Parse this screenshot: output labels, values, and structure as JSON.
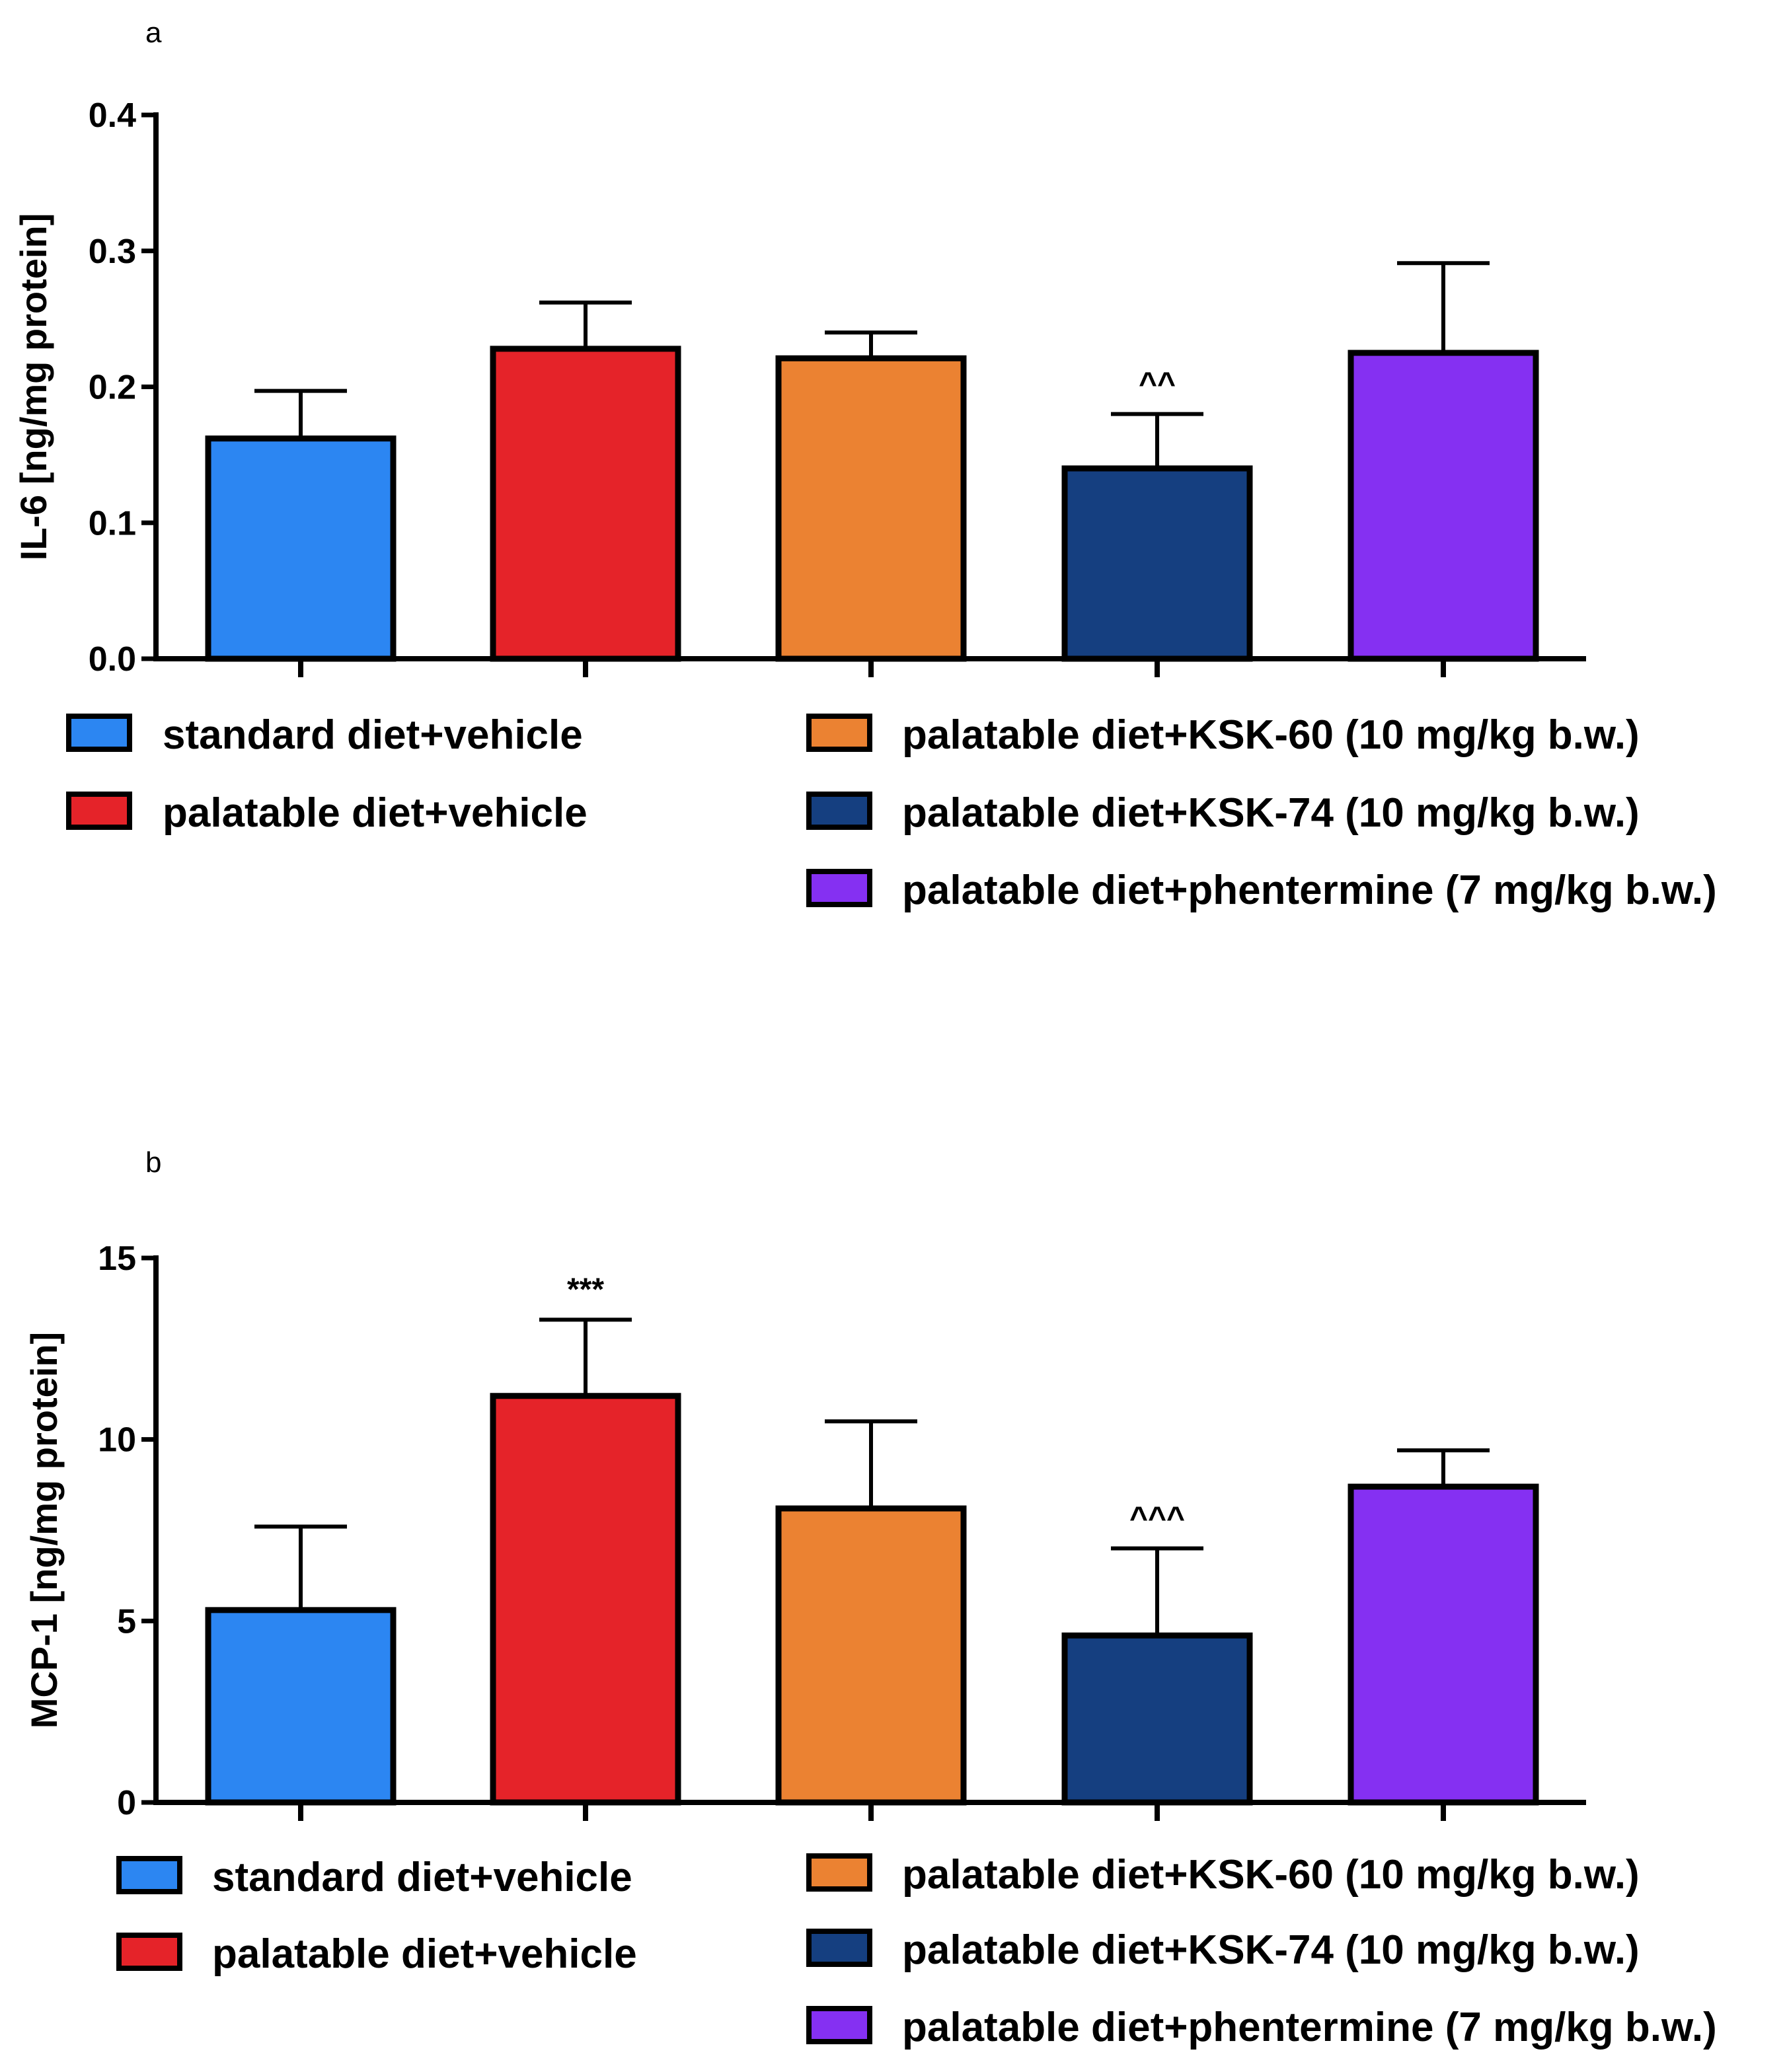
{
  "chart_data": [
    {
      "type": "bar",
      "panel": "a",
      "ylabel": "IL-6 [ng/mg protein]",
      "xlabel": "",
      "ylim": [
        0,
        0.4
      ],
      "yticks": [
        "0.0",
        "0.1",
        "0.2",
        "0.3",
        "0.4"
      ],
      "ytick_values": [
        0,
        0.1,
        0.2,
        0.3,
        0.4
      ],
      "categories": [
        "standard diet+vehicle",
        "palatable diet+vehicle",
        "palatable diet+KSK-60 (10 mg/kg b.w.)",
        "palatable diet+KSK-74 (10 mg/kg b.w.)",
        "palatable diet+phentermine (7 mg/kg b.w.)"
      ],
      "values": [
        0.162,
        0.228,
        0.221,
        0.14,
        0.225
      ],
      "errors": [
        0.035,
        0.034,
        0.019,
        0.04,
        0.066
      ],
      "significance": [
        "",
        "",
        "",
        "^^",
        ""
      ],
      "colors": [
        "#2C86F2",
        "#E52329",
        "#EB8232",
        "#153F80",
        "#8530F2"
      ],
      "legend": {
        "left": [
          "standard diet+vehicle",
          "palatable diet+vehicle"
        ],
        "right": [
          "palatable diet+KSK-60 (10 mg/kg b.w.)",
          "palatable diet+KSK-74 (10 mg/kg b.w.)",
          "palatable diet+phentermine (7 mg/kg b.w.)"
        ]
      }
    },
    {
      "type": "bar",
      "panel": "b",
      "ylabel": "MCP-1 [ng/mg protein]",
      "xlabel": "",
      "ylim": [
        0,
        15
      ],
      "yticks": [
        "0",
        "5",
        "10",
        "15"
      ],
      "ytick_values": [
        0,
        5,
        10,
        15
      ],
      "categories": [
        "standard diet+vehicle",
        "palatable diet+vehicle",
        "palatable diet+KSK-60 (10 mg/kg b.w.)",
        "palatable diet+KSK-74 (10 mg/kg b.w.)",
        "palatable diet+phentermine (7 mg/kg b.w.)"
      ],
      "values": [
        5.3,
        11.2,
        8.1,
        4.6,
        8.7
      ],
      "errors": [
        2.3,
        2.1,
        2.4,
        2.4,
        1.0
      ],
      "significance": [
        "",
        "***",
        "",
        "^^^",
        ""
      ],
      "colors": [
        "#2C86F2",
        "#E52329",
        "#EB8232",
        "#153F80",
        "#8530F2"
      ],
      "legend": {
        "left": [
          "standard diet+vehicle",
          "palatable diet+vehicle"
        ],
        "right": [
          "palatable diet+KSK-60 (10 mg/kg b.w.)",
          "palatable diet+KSK-74 (10 mg/kg b.w.)",
          "palatable diet+phentermine (7 mg/kg b.w.)"
        ]
      }
    }
  ]
}
